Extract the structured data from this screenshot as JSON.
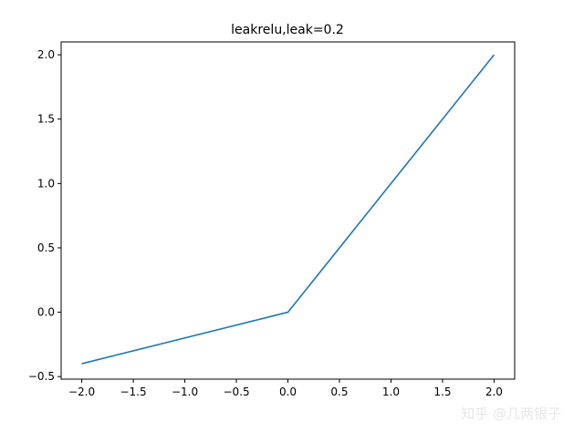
{
  "chart_data": {
    "type": "line",
    "title": "leakrelu,leak=0.2",
    "xlabel": "",
    "ylabel": "",
    "xlim": [
      -2.2,
      2.2
    ],
    "ylim": [
      -0.52,
      2.1
    ],
    "x_ticks": [
      -2.0,
      -1.5,
      -1.0,
      -0.5,
      0.0,
      0.5,
      1.0,
      1.5,
      2.0
    ],
    "y_ticks": [
      -0.5,
      0.0,
      0.5,
      1.0,
      1.5,
      2.0
    ],
    "x_tick_labels": [
      "−2.0",
      "−1.5",
      "−1.0",
      "−0.5",
      "0.0",
      "0.5",
      "1.0",
      "1.5",
      "2.0"
    ],
    "y_tick_labels": [
      "−0.5",
      "0.0",
      "0.5",
      "1.0",
      "1.5",
      "2.0"
    ],
    "grid": false,
    "series": [
      {
        "color": "#1f77b4",
        "x": [
          -2.0,
          0.0,
          2.0
        ],
        "y": [
          -0.4,
          0.0,
          2.0
        ]
      }
    ]
  },
  "watermark": "知乎 @几两银子"
}
